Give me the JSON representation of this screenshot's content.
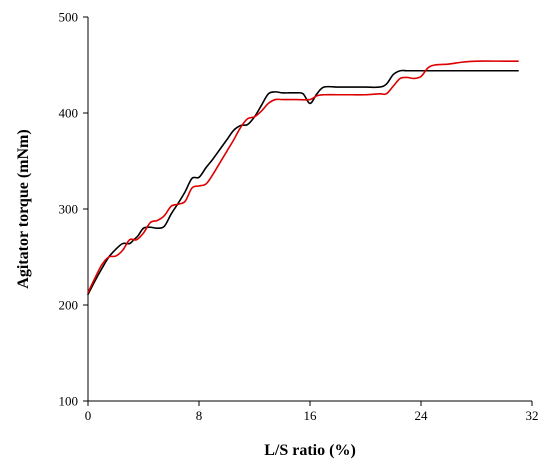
{
  "chart_data": {
    "type": "line",
    "title": "",
    "xlabel": "L/S ratio (%)",
    "ylabel": "Agitator torque (mNm)",
    "xlim": [
      0,
      32
    ],
    "ylim": [
      100,
      500
    ],
    "xticks": [
      0,
      8,
      16,
      24,
      32
    ],
    "yticks": [
      100,
      200,
      300,
      400,
      500
    ],
    "xtick_labels": [
      "0",
      "8",
      "16",
      "24",
      "32"
    ],
    "ytick_labels": [
      "100",
      "200",
      "300",
      "400",
      "500"
    ],
    "grid": false,
    "legend": "none",
    "series": [
      {
        "color": "#000000",
        "x": [
          0,
          0.5,
          1,
          1.5,
          2,
          2.5,
          3,
          3.3,
          3.6,
          4,
          4.5,
          5,
          5.5,
          6,
          6.5,
          7,
          7.5,
          8,
          8.5,
          9,
          9.5,
          10,
          10.5,
          11,
          11.5,
          12,
          12.5,
          13,
          13.5,
          14,
          14.5,
          15,
          15.5,
          16,
          16.5,
          17,
          18,
          19,
          20,
          21,
          21.5,
          22,
          22.5,
          23,
          24,
          25,
          26,
          28,
          30,
          31
        ],
        "y": [
          211,
          225,
          238,
          250,
          258,
          264,
          264,
          268,
          272,
          280,
          281,
          280,
          282,
          295,
          306,
          318,
          332,
          333,
          343,
          352,
          362,
          372,
          382,
          387,
          388,
          396,
          408,
          420,
          422,
          421,
          421,
          421,
          420,
          410,
          420,
          427,
          427,
          427,
          427,
          427,
          430,
          440,
          444,
          444,
          444,
          444,
          444,
          444,
          444,
          444
        ]
      },
      {
        "color": "#dd0000",
        "x": [
          0,
          0.5,
          1,
          1.5,
          2,
          2.5,
          3,
          3.5,
          4,
          4.5,
          5,
          5.5,
          6,
          6.5,
          7,
          7.5,
          8,
          8.5,
          9,
          9.5,
          10,
          10.5,
          11,
          11.5,
          12,
          12.5,
          13,
          13.5,
          14,
          15,
          16,
          16.5,
          17,
          18,
          19,
          20,
          21,
          21.5,
          22,
          22.5,
          23,
          23.5,
          24,
          24.5,
          25,
          26,
          27,
          28,
          30,
          31
        ],
        "y": [
          213,
          228,
          242,
          250,
          251,
          257,
          268,
          268,
          275,
          286,
          288,
          293,
          303,
          305,
          308,
          322,
          324,
          326,
          336,
          348,
          360,
          372,
          385,
          394,
          396,
          402,
          410,
          414,
          414,
          414,
          414,
          418,
          419,
          419,
          419,
          419,
          420,
          420,
          428,
          436,
          437,
          436,
          438,
          447,
          450,
          451,
          453,
          454,
          454,
          454
        ]
      }
    ]
  }
}
